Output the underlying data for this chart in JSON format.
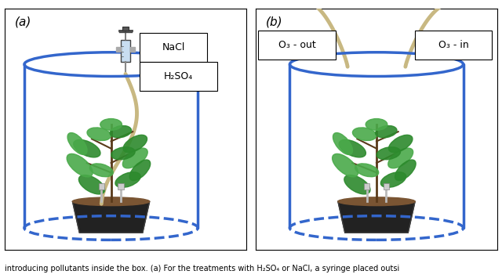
{
  "fig_width": 6.4,
  "fig_height": 3.55,
  "dpi": 100,
  "bg_color": "#ffffff",
  "border_color": "#000000",
  "panel_a_label": "(a)",
  "panel_b_label": "(b)",
  "cylinder_color": "#3366cc",
  "cylinder_lw": 2.5,
  "dashed_color": "#3366cc",
  "tube_color": "#c8b882",
  "tube_lw": 3.5,
  "plant_green_dark": "#2d8a2d",
  "plant_green_light": "#4aaa4a",
  "pot_color": "#222222",
  "pot_brown": "#7a5533",
  "electrode_color": "#bbbbbb",
  "label_nacl": "NaCl",
  "label_h2so4": "H₂SO₄",
  "label_o3out": "O₃ - out",
  "label_o3in": "O₃ - in",
  "caption_text": "introducing pollutants inside the box. (a) For the treatments with H₂SO₄ or NaCl, a syringe placed outsi",
  "caption_fontsize": 7,
  "label_fontsize": 9,
  "panel_label_fontsize": 11
}
